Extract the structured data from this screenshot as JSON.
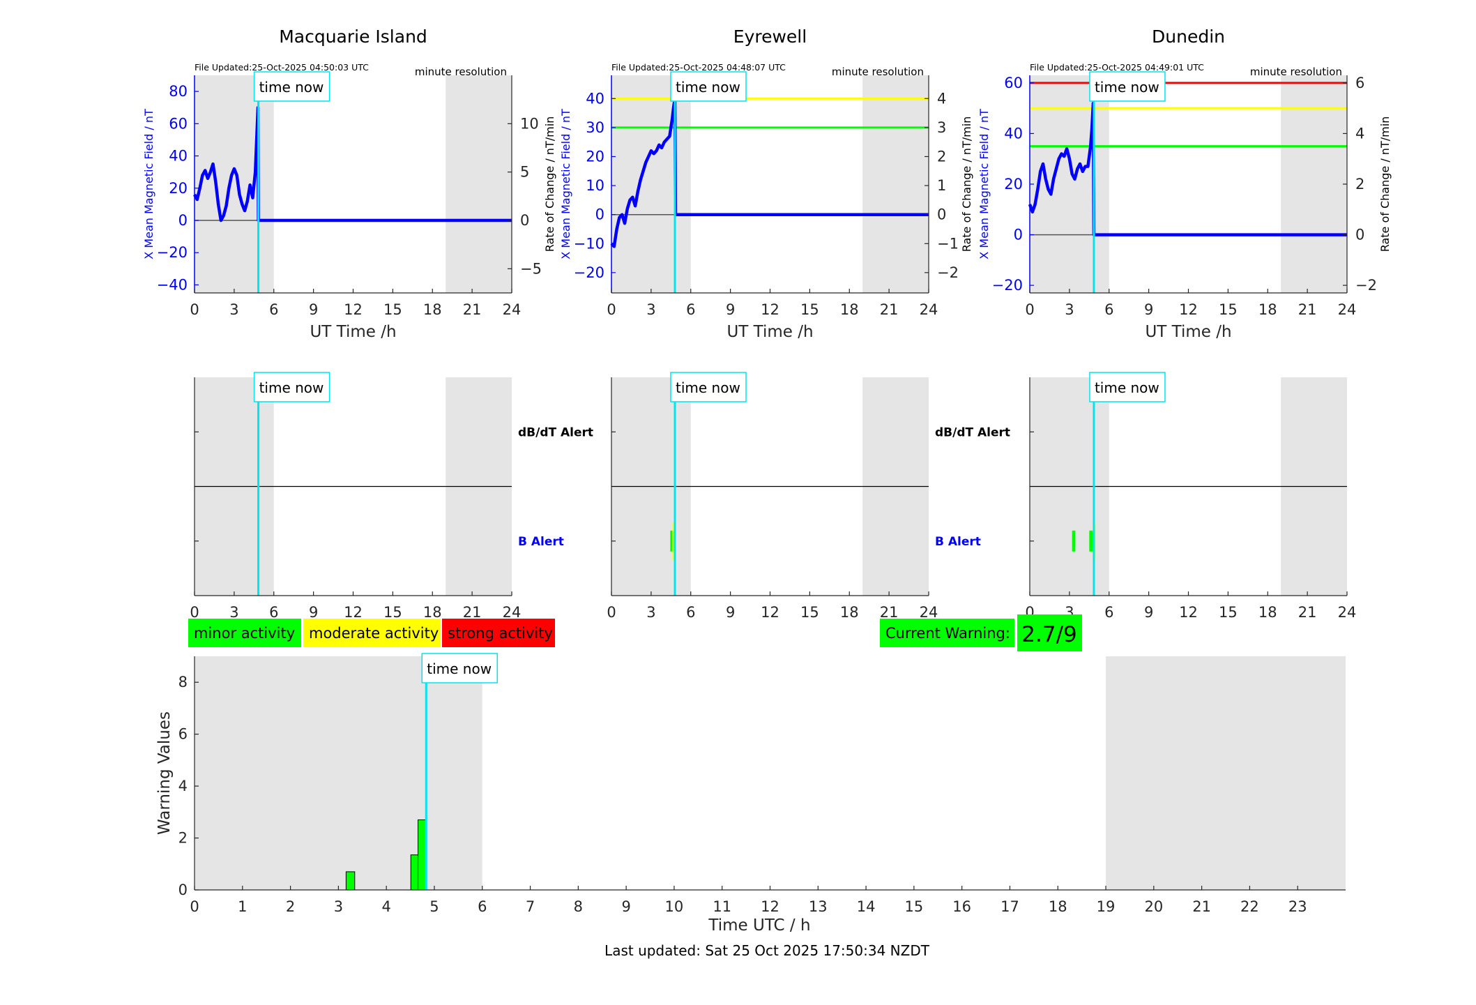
{
  "colors": {
    "field_line": "#0000ff",
    "rate_line": "#555555",
    "time_now": "#00e5ee",
    "night_shade": "#e5e5e5",
    "minor": "#00ff00",
    "moderate": "#ffff00",
    "strong": "#ff0000",
    "axis": "#262626"
  },
  "time_now_label": "time now",
  "resolution_label": "minute resolution",
  "station_x_label": "UT Time /h",
  "station_ylabel_left": "X Mean Magnetic Field / nT",
  "station_ylabel_right": "Rate of Change / nT/min",
  "alert_labels": {
    "dbdt": "dB/dT Alert",
    "b": "B Alert"
  },
  "legend": {
    "minor": "minor activity",
    "moderate": "moderate activity",
    "strong": "strong activity"
  },
  "current_warning": {
    "label": "Current Warning:",
    "value": "2.7/9"
  },
  "last_updated": "Last updated: Sat 25 Oct 2025 17:50:34 NZDT",
  "chart_data": [
    {
      "type": "line",
      "title": "Macquarie Island",
      "file_updated": "File Updated:25-Oct-2025 04:50:03 UTC",
      "xlabel": "UT Time /h",
      "xlim": [
        0,
        24
      ],
      "xticks": [
        0,
        3,
        6,
        9,
        12,
        15,
        18,
        21,
        24
      ],
      "ylabel_left": "X Mean Magnetic Field / nT",
      "ylim_left": [
        -45,
        90
      ],
      "yticks_left": [
        -40,
        -20,
        0,
        20,
        40,
        60,
        80
      ],
      "ylabel_right": "Rate of Change / nT/min",
      "ylim_right": [
        -7.5,
        15
      ],
      "yticks_right": [
        -5,
        0,
        5,
        10
      ],
      "night_shading_hours": [
        [
          0,
          6
        ],
        [
          19,
          24
        ]
      ],
      "time_now_hour": 4.83,
      "thresholds": [],
      "series": [
        {
          "axis": "left",
          "values": [
            [
              0,
              16
            ],
            [
              0.2,
              13
            ],
            [
              0.4,
              20
            ],
            [
              0.6,
              28
            ],
            [
              0.8,
              31
            ],
            [
              1.0,
              26
            ],
            [
              1.2,
              30
            ],
            [
              1.4,
              35
            ],
            [
              1.6,
              24
            ],
            [
              1.8,
              10
            ],
            [
              2.0,
              0
            ],
            [
              2.2,
              3
            ],
            [
              2.4,
              9
            ],
            [
              2.6,
              20
            ],
            [
              2.8,
              28
            ],
            [
              3.0,
              32
            ],
            [
              3.2,
              28
            ],
            [
              3.4,
              16
            ],
            [
              3.6,
              10
            ],
            [
              3.8,
              6
            ],
            [
              4.0,
              12
            ],
            [
              4.2,
              22
            ],
            [
              4.4,
              14
            ],
            [
              4.6,
              30
            ],
            [
              4.7,
              50
            ],
            [
              4.8,
              70
            ],
            [
              4.83,
              0
            ],
            [
              24,
              0
            ]
          ]
        },
        {
          "axis": "right",
          "values": [
            [
              0,
              0
            ],
            [
              24,
              0
            ]
          ]
        }
      ]
    },
    {
      "type": "line",
      "title": "Eyrewell",
      "file_updated": "File Updated:25-Oct-2025 04:48:07 UTC",
      "xlabel": "UT Time /h",
      "xlim": [
        0,
        24
      ],
      "xticks": [
        0,
        3,
        6,
        9,
        12,
        15,
        18,
        21,
        24
      ],
      "ylabel_left": "X Mean Magnetic Field / nT",
      "ylim_left": [
        -27,
        48
      ],
      "yticks_left": [
        -20,
        -10,
        0,
        10,
        20,
        30,
        40
      ],
      "ylabel_right": "Rate of Change / nT/min",
      "ylim_right": [
        -2.7,
        4.8
      ],
      "yticks_right": [
        -2,
        -1,
        0,
        1,
        2,
        3,
        4
      ],
      "night_shading_hours": [
        [
          0,
          6
        ],
        [
          19,
          24
        ]
      ],
      "time_now_hour": 4.8,
      "thresholds": [
        {
          "value": 40,
          "color": "moderate"
        },
        {
          "value": 30,
          "color": "minor"
        }
      ],
      "series": [
        {
          "axis": "left",
          "values": [
            [
              0,
              -10
            ],
            [
              0.2,
              -11
            ],
            [
              0.4,
              -5
            ],
            [
              0.6,
              -1
            ],
            [
              0.8,
              0
            ],
            [
              1.0,
              -3
            ],
            [
              1.2,
              2
            ],
            [
              1.4,
              5
            ],
            [
              1.6,
              6
            ],
            [
              1.8,
              3
            ],
            [
              2.0,
              8
            ],
            [
              2.2,
              12
            ],
            [
              2.4,
              15
            ],
            [
              2.6,
              18
            ],
            [
              2.8,
              20
            ],
            [
              3.0,
              22
            ],
            [
              3.2,
              21
            ],
            [
              3.4,
              22
            ],
            [
              3.6,
              24
            ],
            [
              3.8,
              23
            ],
            [
              4.0,
              25
            ],
            [
              4.2,
              26
            ],
            [
              4.4,
              27
            ],
            [
              4.6,
              33
            ],
            [
              4.7,
              37
            ],
            [
              4.8,
              40
            ],
            [
              4.85,
              0
            ],
            [
              24,
              0
            ]
          ]
        },
        {
          "axis": "right",
          "values": [
            [
              0,
              0
            ],
            [
              24,
              0
            ]
          ]
        }
      ]
    },
    {
      "type": "line",
      "title": "Dunedin",
      "file_updated": "File Updated:25-Oct-2025 04:49:01 UTC",
      "xlabel": "UT Time /h",
      "xlim": [
        0,
        24
      ],
      "xticks": [
        0,
        3,
        6,
        9,
        12,
        15,
        18,
        21,
        24
      ],
      "ylabel_left": "X Mean Magnetic Field / nT",
      "ylim_left": [
        -23,
        63
      ],
      "yticks_left": [
        -20,
        0,
        20,
        40,
        60
      ],
      "ylabel_right": "Rate of Change / nT/min",
      "ylim_right": [
        -2.3,
        6.3
      ],
      "yticks_right": [
        -2,
        0,
        2,
        4,
        6
      ],
      "night_shading_hours": [
        [
          0,
          6
        ],
        [
          19,
          24
        ]
      ],
      "time_now_hour": 4.85,
      "thresholds": [
        {
          "value": 60,
          "color": "strong"
        },
        {
          "value": 50,
          "color": "moderate"
        },
        {
          "value": 35,
          "color": "minor"
        }
      ],
      "series": [
        {
          "axis": "left",
          "values": [
            [
              0,
              12
            ],
            [
              0.2,
              9
            ],
            [
              0.4,
              12
            ],
            [
              0.6,
              18
            ],
            [
              0.8,
              25
            ],
            [
              1.0,
              28
            ],
            [
              1.2,
              22
            ],
            [
              1.4,
              18
            ],
            [
              1.6,
              16
            ],
            [
              1.8,
              22
            ],
            [
              2.0,
              26
            ],
            [
              2.2,
              30
            ],
            [
              2.4,
              32
            ],
            [
              2.6,
              31
            ],
            [
              2.8,
              34
            ],
            [
              3.0,
              30
            ],
            [
              3.2,
              24
            ],
            [
              3.4,
              22
            ],
            [
              3.6,
              26
            ],
            [
              3.8,
              28
            ],
            [
              4.0,
              25
            ],
            [
              4.2,
              27
            ],
            [
              4.4,
              27
            ],
            [
              4.6,
              35
            ],
            [
              4.7,
              42
            ],
            [
              4.8,
              52
            ],
            [
              4.85,
              0
            ],
            [
              24,
              0
            ]
          ]
        },
        {
          "axis": "right",
          "values": [
            [
              0,
              0
            ],
            [
              24,
              0
            ]
          ]
        }
      ]
    },
    {
      "type": "bar",
      "title": "",
      "xlabel": "",
      "xlim": [
        0,
        24
      ],
      "xticks": [
        0,
        3,
        6,
        9,
        12,
        15,
        18,
        21,
        24
      ],
      "night_shading_hours": [
        [
          0,
          6
        ],
        [
          19,
          24
        ]
      ],
      "time_now_hour": 4.83,
      "rows": [
        "dB/dT Alert",
        "B Alert"
      ],
      "alerts": []
    },
    {
      "type": "bar",
      "title": "",
      "xlabel": "",
      "xlim": [
        0,
        24
      ],
      "xticks": [
        0,
        3,
        6,
        9,
        12,
        15,
        18,
        21,
        24
      ],
      "night_shading_hours": [
        [
          0,
          6
        ],
        [
          19,
          24
        ]
      ],
      "time_now_hour": 4.8,
      "rows": [
        "dB/dT Alert",
        "B Alert"
      ],
      "alerts": [
        {
          "row": "B Alert",
          "start": 4.45,
          "end": 4.85,
          "color": "minor"
        },
        {
          "row": "B Alert",
          "start": 4.6,
          "end": 4.9,
          "color": "moderate"
        }
      ]
    },
    {
      "type": "bar",
      "title": "",
      "xlabel": "",
      "xlim": [
        0,
        24
      ],
      "xticks": [
        0,
        3,
        6,
        9,
        12,
        15,
        18,
        21,
        24
      ],
      "night_shading_hours": [
        [
          0,
          6
        ],
        [
          19,
          24
        ]
      ],
      "time_now_hour": 4.85,
      "rows": [
        "dB/dT Alert",
        "B Alert"
      ],
      "alerts": [
        {
          "row": "B Alert",
          "start": 3.2,
          "end": 3.45,
          "color": "minor"
        },
        {
          "row": "B Alert",
          "start": 4.5,
          "end": 4.9,
          "color": "minor"
        },
        {
          "row": "B Alert",
          "start": 4.75,
          "end": 4.95,
          "color": "moderate"
        }
      ]
    },
    {
      "type": "bar",
      "title": "",
      "xlabel": "Time UTC / h",
      "ylabel": "Warning Values",
      "xlim": [
        0,
        24
      ],
      "xticks": [
        0,
        1,
        2,
        3,
        4,
        5,
        6,
        7,
        8,
        9,
        10,
        11,
        12,
        13,
        14,
        15,
        16,
        17,
        18,
        19,
        20,
        21,
        22,
        23
      ],
      "ylim": [
        0,
        9
      ],
      "yticks": [
        0,
        2,
        4,
        6,
        8
      ],
      "night_shading_hours": [
        [
          0,
          6
        ],
        [
          19,
          24
        ]
      ],
      "time_now_hour": 4.83,
      "bars": [
        {
          "x": 3.25,
          "value": 0.7
        },
        {
          "x": 4.6,
          "value": 1.35
        },
        {
          "x": 4.75,
          "value": 2.7
        }
      ]
    }
  ]
}
